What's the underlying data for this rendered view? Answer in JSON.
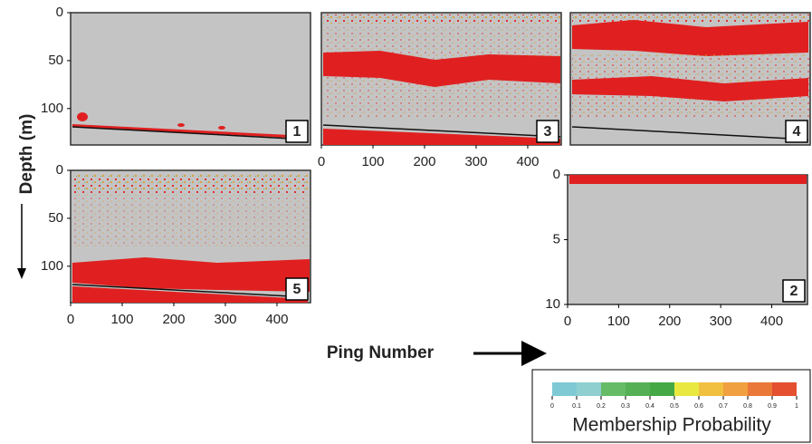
{
  "figure": {
    "y_label": "Depth (m)",
    "x_label": "Ping Number"
  },
  "chart_data": [
    {
      "type": "echogram",
      "label": "1",
      "xlim": [
        0,
        465
      ],
      "ylim": [
        0,
        138
      ],
      "yticks": [
        0,
        50,
        100
      ],
      "xticks": []
    },
    {
      "type": "echogram",
      "label": "3",
      "xlim": [
        0,
        465
      ],
      "ylim": [
        0,
        138
      ],
      "yticks": [],
      "xticks": [
        0,
        100,
        200,
        300,
        400
      ]
    },
    {
      "type": "echogram",
      "label": "4",
      "xlim": [
        0,
        465
      ],
      "ylim": [
        0,
        138
      ],
      "yticks": [],
      "xticks": []
    },
    {
      "type": "echogram",
      "label": "5",
      "xlim": [
        0,
        465
      ],
      "ylim": [
        0,
        138
      ],
      "yticks": [
        0,
        50,
        100
      ],
      "xticks": [
        0,
        100,
        200,
        300,
        400
      ]
    },
    {
      "type": "echogram",
      "label": "2",
      "xlim": [
        0,
        470
      ],
      "ylim": [
        0,
        10
      ],
      "yticks": [
        0,
        5,
        10
      ],
      "xticks": [
        0,
        100,
        200,
        300,
        400
      ]
    }
  ],
  "colorbar": {
    "title": "Membership Probability",
    "ticks": [
      0,
      0.1,
      0.2,
      0.3,
      0.4,
      0.5,
      0.6,
      0.7,
      0.8,
      0.9,
      1
    ],
    "colors": [
      "#7fc9d4",
      "#8fcfcf",
      "#66bb66",
      "#55b055",
      "#44a844",
      "#e8e840",
      "#f2c040",
      "#f0a040",
      "#ea7838",
      "#e45030"
    ]
  }
}
